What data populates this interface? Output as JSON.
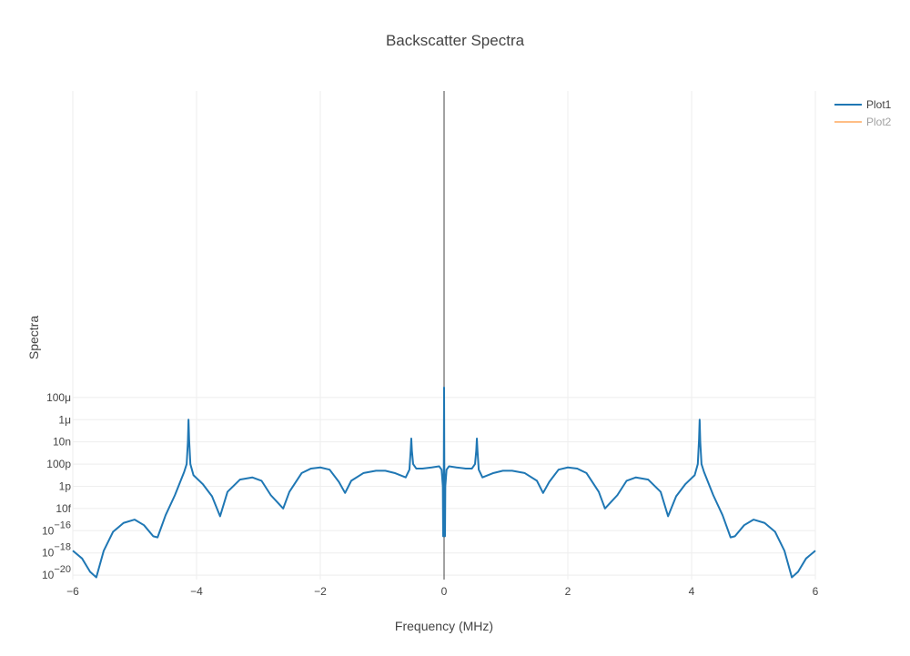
{
  "chart_data": {
    "type": "line",
    "title": "Backscatter Spectra",
    "xlabel": "Frequency (MHz)",
    "ylabel": "Spectra",
    "xlim": [
      -6,
      6
    ],
    "ylim_log10": [
      -20.4,
      23.6
    ],
    "y_scale": "log",
    "grid": true,
    "legend_position": "top-right",
    "x_ticks": [
      -6,
      -4,
      -2,
      0,
      2,
      4,
      6
    ],
    "x_tick_labels": [
      "−6",
      "−4",
      "−2",
      "0",
      "2",
      "4",
      "6"
    ],
    "y_ticks_log10": [
      -20,
      -18,
      -16,
      -14,
      -12,
      -10,
      -8,
      -6,
      -4
    ],
    "y_tick_labels": [
      {
        "base": "10",
        "exp": "−20"
      },
      {
        "base": "10",
        "exp": "−18"
      },
      {
        "base": "10",
        "exp": "−16"
      },
      {
        "text": "10f"
      },
      {
        "text": "1p"
      },
      {
        "text": "100p"
      },
      {
        "text": "10n"
      },
      {
        "text": "1μ"
      },
      {
        "text": "100μ"
      }
    ],
    "series": [
      {
        "name": "Plot1",
        "color": "#1f77b4",
        "visible": true,
        "x": [
          -6.0,
          -5.85,
          -5.72,
          -5.62,
          -5.5,
          -5.35,
          -5.18,
          -5.0,
          -4.85,
          -4.7,
          -4.63,
          -4.5,
          -4.35,
          -4.2,
          -4.16,
          -4.14,
          -4.13,
          -4.12,
          -4.1,
          -4.05,
          -3.9,
          -3.75,
          -3.62,
          -3.5,
          -3.3,
          -3.1,
          -2.95,
          -2.8,
          -2.7,
          -2.6,
          -2.5,
          -2.3,
          -2.15,
          -2.0,
          -1.85,
          -1.7,
          -1.6,
          -1.5,
          -1.3,
          -1.1,
          -0.95,
          -0.8,
          -0.62,
          -0.56,
          -0.54,
          -0.53,
          -0.52,
          -0.5,
          -0.45,
          -0.35,
          -0.2,
          -0.08,
          -0.04,
          -0.02,
          -0.015,
          -0.008,
          0.0,
          0.008,
          0.015,
          0.02,
          0.04,
          0.08,
          0.2,
          0.35,
          0.45,
          0.5,
          0.52,
          0.53,
          0.54,
          0.56,
          0.62,
          0.8,
          0.95,
          1.1,
          1.3,
          1.5,
          1.6,
          1.7,
          1.85,
          2.0,
          2.15,
          2.3,
          2.5,
          2.6,
          2.7,
          2.8,
          2.95,
          3.1,
          3.3,
          3.5,
          3.62,
          3.75,
          3.9,
          4.05,
          4.1,
          4.12,
          4.13,
          4.14,
          4.16,
          4.2,
          4.35,
          4.5,
          4.63,
          4.7,
          4.85,
          5.0,
          5.18,
          5.35,
          5.5,
          5.62,
          5.72,
          5.85,
          6.0
        ],
        "y_log10": [
          -17.8,
          -18.5,
          -19.7,
          -20.2,
          -17.8,
          -16.1,
          -15.3,
          -15.0,
          -15.5,
          -16.5,
          -16.6,
          -14.6,
          -12.8,
          -10.7,
          -10.0,
          -8.0,
          -6.0,
          -7.8,
          -10.0,
          -11.0,
          -11.8,
          -12.9,
          -14.7,
          -12.5,
          -11.4,
          -11.2,
          -11.5,
          -12.8,
          -13.4,
          -14.0,
          -12.5,
          -10.8,
          -10.4,
          -10.3,
          -10.5,
          -11.6,
          -12.6,
          -11.5,
          -10.8,
          -10.6,
          -10.6,
          -10.8,
          -11.2,
          -10.5,
          -8.8,
          -7.7,
          -8.8,
          -10.0,
          -10.4,
          -10.4,
          -10.3,
          -10.2,
          -10.5,
          -12.0,
          -16.5,
          -16.2,
          -3.1,
          -16.2,
          -16.5,
          -12.0,
          -10.5,
          -10.2,
          -10.3,
          -10.4,
          -10.4,
          -10.0,
          -8.8,
          -7.7,
          -8.8,
          -10.5,
          -11.2,
          -10.8,
          -10.6,
          -10.6,
          -10.8,
          -11.5,
          -12.6,
          -11.6,
          -10.5,
          -10.3,
          -10.4,
          -10.8,
          -12.5,
          -14.0,
          -13.4,
          -12.8,
          -11.5,
          -11.2,
          -11.4,
          -12.5,
          -14.7,
          -12.9,
          -11.8,
          -11.0,
          -10.0,
          -7.8,
          -6.0,
          -8.0,
          -10.0,
          -10.7,
          -12.8,
          -14.6,
          -16.6,
          -16.5,
          -15.5,
          -15.0,
          -15.3,
          -16.1,
          -17.8,
          -20.2,
          -19.7,
          -18.5,
          -17.8
        ]
      },
      {
        "name": "Plot2",
        "color": "#ff7f0e",
        "visible": false
      }
    ]
  }
}
